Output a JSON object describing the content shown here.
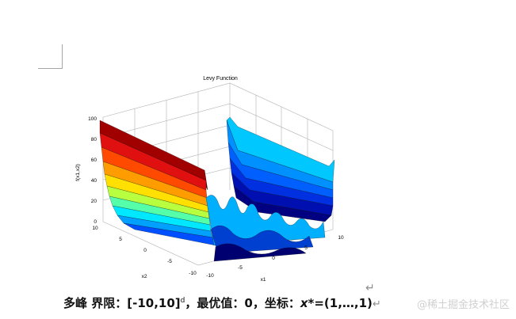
{
  "figure": {
    "title": "Levy Function",
    "zlabel": "f(x1,x2)",
    "xlabel": "x1",
    "ylabel": "x2",
    "z_ticks": [
      "0",
      "20",
      "40",
      "60",
      "80",
      "100"
    ],
    "x1_ticks": [
      "-10",
      "-5",
      "0",
      "5",
      "10"
    ],
    "x2_ticks": [
      "10",
      "5",
      "0",
      "-5",
      "-10"
    ],
    "colormap": [
      "#00007f",
      "#0000ff",
      "#007fff",
      "#00ffff",
      "#7fff7f",
      "#ffff00",
      "#ff7f00",
      "#ff0000",
      "#7f0000"
    ]
  },
  "caption": {
    "part1": "多峰",
    "part2": "界限：",
    "bounds": "[-10,10]",
    "bounds_sup": "d",
    "part3": "，最优值：0，坐标：",
    "xstar": "x",
    "part4": "*=(1,…,1)"
  },
  "return_mark": "↵",
  "watermark": "@稀土掘金技术社区"
}
